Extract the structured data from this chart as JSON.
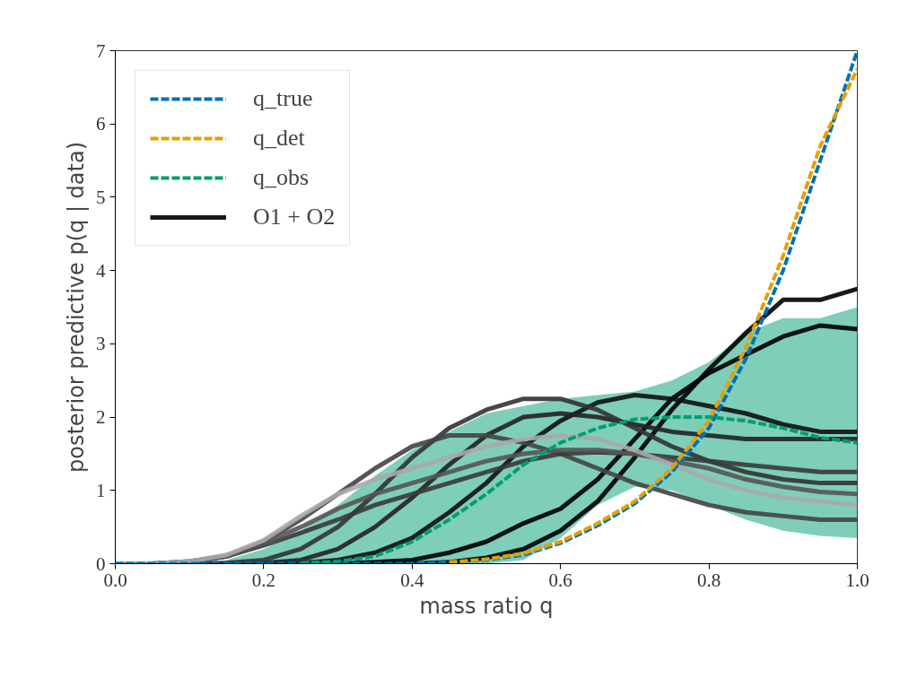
{
  "chart_data": {
    "type": "line",
    "xlabel": "mass ratio q",
    "ylabel": "posterior predictive p(q | data)",
    "x": [
      0,
      0.05,
      0.1,
      0.15,
      0.2,
      0.25,
      0.3,
      0.35,
      0.4,
      0.45,
      0.5,
      0.55,
      0.6,
      0.65,
      0.7,
      0.75,
      0.8,
      0.85,
      0.9,
      0.95,
      1.0
    ],
    "xlim": [
      0,
      1
    ],
    "ylim": [
      0,
      7
    ],
    "xticks": [
      {
        "value": 0,
        "label": "0.0"
      },
      0.2,
      0.4,
      0.6,
      0.8,
      {
        "value": 1,
        "label": "1.0"
      }
    ],
    "yticks": [
      0,
      1,
      2,
      3,
      4,
      5,
      6,
      7
    ],
    "grid": false,
    "legend": "top left",
    "line_style": "solid",
    "marker": "none",
    "series": [
      {
        "name": "q_true",
        "color": "#0072b2",
        "line_style": "dashed",
        "values": [
          0,
          0,
          0,
          0,
          0,
          0,
          0,
          0,
          0,
          0.02,
          0.05,
          0.12,
          0.28,
          0.52,
          0.82,
          1.25,
          1.85,
          2.8,
          4.0,
          5.5,
          7.0
        ]
      },
      {
        "name": "q_det",
        "color": "#e69f00",
        "line_style": "dashed",
        "values": [
          null,
          null,
          null,
          null,
          null,
          null,
          null,
          null,
          null,
          0.02,
          0.06,
          0.14,
          0.3,
          0.55,
          0.85,
          1.3,
          1.95,
          2.95,
          4.2,
          5.7,
          6.75
        ]
      },
      {
        "name": "q_obs",
        "color": "#009e73",
        "line_style": "dashed",
        "values": [
          null,
          null,
          null,
          null,
          null,
          0.01,
          0.03,
          0.1,
          0.3,
          0.6,
          0.95,
          1.35,
          1.65,
          1.85,
          1.97,
          2.0,
          2.0,
          1.95,
          1.85,
          1.72,
          1.65
        ],
        "lower": [
          0,
          0,
          0,
          0,
          0,
          0,
          0,
          0,
          0,
          0,
          0,
          0.05,
          0.35,
          0.8,
          1.05,
          1.0,
          0.8,
          0.6,
          0.45,
          0.38,
          0.35
        ],
        "upper": [
          0,
          0,
          0,
          0.05,
          0.2,
          0.45,
          0.8,
          1.2,
          1.55,
          1.8,
          2.05,
          2.15,
          2.25,
          2.3,
          2.35,
          2.5,
          2.75,
          3.15,
          3.35,
          3.35,
          3.5
        ]
      },
      {
        "name": "O1 + O2",
        "color": "#000000",
        "values": [
          0,
          0,
          0,
          0,
          0,
          0,
          0,
          0,
          0,
          0.02,
          0.08,
          0.2,
          0.45,
          0.85,
          1.45,
          2.1,
          2.65,
          3.15,
          3.6,
          3.6,
          3.75
        ]
      },
      {
        "color": "#000000",
        "values": [
          0,
          0,
          0,
          0,
          0,
          0,
          0,
          0.02,
          0.05,
          0.15,
          0.3,
          0.55,
          0.75,
          1.15,
          1.7,
          2.25,
          2.6,
          2.85,
          3.1,
          3.25,
          3.2
        ]
      },
      {
        "color": "#111111",
        "values": [
          0,
          0,
          0,
          0,
          0,
          0.01,
          0.05,
          0.15,
          0.35,
          0.7,
          1.1,
          1.6,
          1.95,
          2.2,
          2.3,
          2.25,
          2.15,
          2.05,
          1.9,
          1.8,
          1.8
        ]
      },
      {
        "color": "#222222",
        "values": [
          0,
          0,
          0,
          0,
          0.01,
          0.05,
          0.2,
          0.5,
          0.9,
          1.35,
          1.75,
          2.0,
          2.05,
          2.0,
          1.9,
          1.8,
          1.75,
          1.7,
          1.7,
          1.7,
          1.7
        ]
      },
      {
        "color": "#333333",
        "values": [
          0,
          0,
          0,
          0.01,
          0.05,
          0.2,
          0.5,
          0.95,
          1.45,
          1.85,
          2.1,
          2.25,
          2.25,
          2.1,
          1.85,
          1.6,
          1.4,
          1.25,
          1.15,
          1.1,
          1.1
        ]
      },
      {
        "color": "#444444",
        "values": [
          0,
          0,
          0.03,
          0.1,
          0.3,
          0.6,
          0.95,
          1.3,
          1.6,
          1.75,
          1.75,
          1.65,
          1.5,
          1.3,
          1.1,
          0.95,
          0.8,
          0.7,
          0.65,
          0.6,
          0.6
        ]
      },
      {
        "color": "#3a3a3a",
        "values": [
          0,
          0,
          0.02,
          0.1,
          0.25,
          0.42,
          0.6,
          0.8,
          0.95,
          1.1,
          1.25,
          1.4,
          1.5,
          1.52,
          1.5,
          1.45,
          1.4,
          1.35,
          1.3,
          1.25,
          1.25
        ]
      },
      {
        "color": "#555555",
        "values": [
          0,
          0,
          0.03,
          0.1,
          0.28,
          0.5,
          0.75,
          0.95,
          1.1,
          1.25,
          1.4,
          1.5,
          1.55,
          1.55,
          1.5,
          1.4,
          1.3,
          1.15,
          1.05,
          0.98,
          0.95
        ]
      },
      {
        "color": "#aaaaaa",
        "values": [
          0,
          0,
          0.03,
          0.12,
          0.32,
          0.65,
          0.95,
          1.15,
          1.3,
          1.45,
          1.6,
          1.7,
          1.75,
          1.7,
          1.55,
          1.35,
          1.15,
          1.0,
          0.9,
          0.85,
          0.8
        ]
      }
    ]
  }
}
